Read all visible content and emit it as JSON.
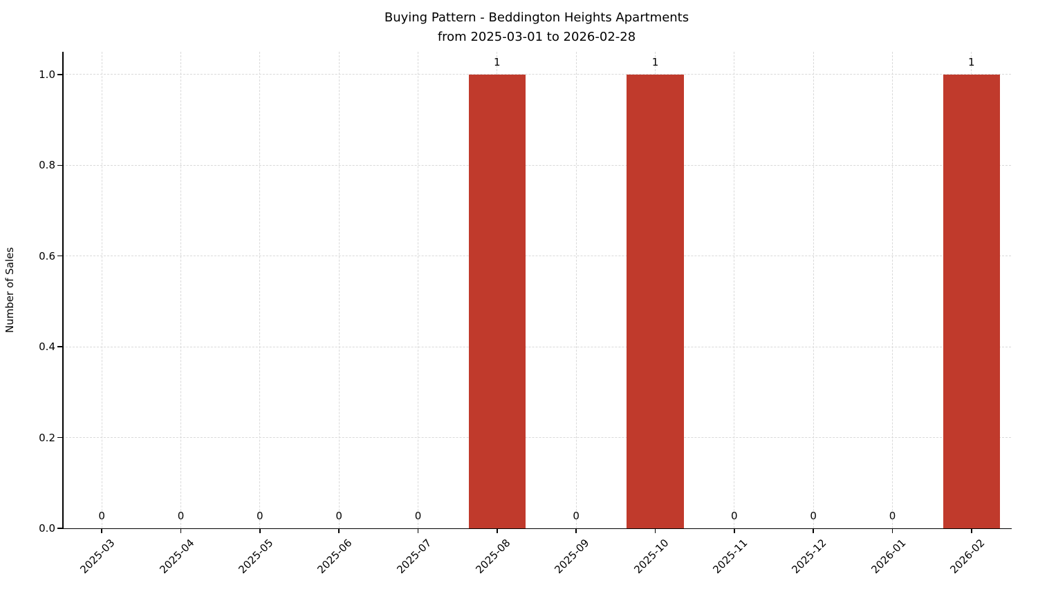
{
  "header": {
    "title_line1": "Buying Pattern - Beddington Heights Apartments",
    "title_line2": "from 2025-03-01 to 2026-02-28"
  },
  "chart_data": {
    "type": "bar",
    "title": "Buying Pattern - Beddington Heights Apartments\nfrom 2025-03-01 to 2026-02-28",
    "categories": [
      "2025-03",
      "2025-04",
      "2025-05",
      "2025-06",
      "2025-07",
      "2025-08",
      "2025-09",
      "2025-10",
      "2025-11",
      "2025-12",
      "2026-01",
      "2026-02"
    ],
    "values": [
      0,
      0,
      0,
      0,
      0,
      1,
      0,
      1,
      0,
      0,
      0,
      1
    ],
    "bar_labels": [
      "0",
      "0",
      "0",
      "0",
      "0",
      "1",
      "0",
      "1",
      "0",
      "0",
      "0",
      "1"
    ],
    "xlabel": "",
    "ylabel": "Number of Sales",
    "ylim": [
      0,
      1.05
    ],
    "yticks": [
      0.0,
      0.2,
      0.4,
      0.6,
      0.8,
      1.0
    ],
    "ytick_labels": [
      "0.0",
      "0.2",
      "0.4",
      "0.6",
      "0.8",
      "1.0"
    ],
    "bar_color": "#c03a2c",
    "grid": true,
    "grid_style": "dashed",
    "legend": false,
    "x_tick_rotation": 45
  }
}
